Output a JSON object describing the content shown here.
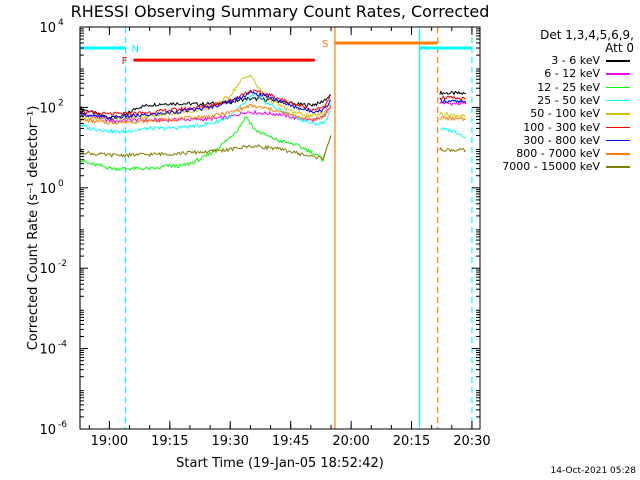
{
  "chart_data": {
    "type": "line",
    "title": "RHESSI Observing Summary Count Rates, Corrected",
    "xlabel": "Start Time (19-Jan-05 18:52:42)",
    "ylabel": "Corrected Count Rate (s⁻¹ detector⁻¹)",
    "y_scale": "log",
    "ylim": [
      1e-06,
      10000.0
    ],
    "y_ticks": [
      {
        "value": 1e-06,
        "base": "10",
        "exp": "-6"
      },
      {
        "value": 0.0001,
        "base": "10",
        "exp": "-4"
      },
      {
        "value": 0.01,
        "base": "10",
        "exp": "-2"
      },
      {
        "value": 1,
        "base": "10",
        "exp": "0"
      },
      {
        "value": 100,
        "base": "10",
        "exp": "2"
      },
      {
        "value": 10000,
        "base": "10",
        "exp": "4"
      }
    ],
    "xlim": [
      "18:52:42",
      "20:32:00"
    ],
    "x_ticks": [
      {
        "t": "19:00",
        "label": "19:00"
      },
      {
        "t": "19:15",
        "label": "19:15"
      },
      {
        "t": "19:30",
        "label": "19:30"
      },
      {
        "t": "19:45",
        "label": "19:45"
      },
      {
        "t": "20:00",
        "label": "20:00"
      },
      {
        "t": "20:15",
        "label": "20:15"
      },
      {
        "t": "20:30",
        "label": "20:30"
      }
    ],
    "legend_header": [
      "Det 1,3,4,5,6,9,",
      "Att 0"
    ],
    "legend_position": "right",
    "series": [
      {
        "name": "3 - 6 keV",
        "color": "#000000",
        "segments": [
          {
            "x": [
              "18:52:42",
              "18:55",
              "18:58",
              "19:01",
              "19:04",
              "19:07",
              "19:10",
              "19:14",
              "19:18",
              "19:22",
              "19:26",
              "19:30",
              "19:34",
              "19:38",
              "19:42",
              "19:46",
              "19:50",
              "19:52",
              "19:53:30",
              "19:55"
            ],
            "y": [
              95,
              80,
              62,
              55,
              65,
              100,
              115,
              125,
              125,
              120,
              125,
              135,
              165,
              160,
              145,
              120,
              115,
              125,
              155,
              200
            ]
          },
          {
            "x": [
              "20:22",
              "20:28:30"
            ],
            "y": [
              230,
              220
            ]
          }
        ]
      },
      {
        "name": "6 - 12 keV",
        "color": "#ff00ff",
        "segments": [
          {
            "x": [
              "18:52:42",
              "18:55",
              "18:58",
              "19:01",
              "19:04",
              "19:07",
              "19:10",
              "19:14",
              "19:18",
              "19:22",
              "19:26",
              "19:30",
              "19:34",
              "19:38",
              "19:42",
              "19:46",
              "19:50",
              "19:52",
              "19:53:30",
              "19:55"
            ],
            "y": [
              75,
              62,
              52,
              45,
              48,
              50,
              48,
              48,
              50,
              50,
              52,
              58,
              78,
              72,
              68,
              55,
              48,
              50,
              65,
              110
            ]
          },
          {
            "x": [
              "20:22",
              "20:28:30"
            ],
            "y": [
              130,
              120
            ]
          }
        ]
      },
      {
        "name": "12 - 25 keV",
        "color": "#00ff00",
        "segments": [
          {
            "x": [
              "18:52:42",
              "18:55",
              "18:58",
              "19:01",
              "19:04",
              "19:06",
              "19:08",
              "19:12",
              "19:14",
              "19:16",
              "19:18",
              "19:20",
              "19:24",
              "19:27",
              "19:30",
              "19:32",
              "19:34",
              "19:36",
              "19:39",
              "19:42",
              "19:46",
              "19:50",
              "19:53",
              "19:55"
            ],
            "y": [
              5,
              4,
              3.5,
              3,
              3,
              3,
              3,
              3,
              3.5,
              3.5,
              3.5,
              4,
              6,
              10,
              18,
              30,
              60,
              28,
              20,
              15,
              12,
              8,
              5,
              20
            ]
          }
        ]
      },
      {
        "name": "25 - 50 keV",
        "color": "#00ffff",
        "segments": [
          {
            "x": [
              "18:52:42",
              "18:55",
              "18:58",
              "19:01",
              "19:04",
              "19:07",
              "19:10",
              "19:14",
              "19:18",
              "19:22",
              "19:26",
              "19:30",
              "19:34",
              "19:36",
              "19:38",
              "19:42",
              "19:46",
              "19:50",
              "19:52",
              "19:53:30",
              "19:55"
            ],
            "y": [
              38,
              30,
              28,
              25,
              25,
              28,
              30,
              30,
              32,
              35,
              42,
              60,
              140,
              220,
              150,
              90,
              60,
              40,
              38,
              45,
              80
            ]
          },
          {
            "x": [
              "20:22",
              "20:26",
              "20:28:30"
            ],
            "y": [
              30,
              25,
              18
            ]
          }
        ]
      },
      {
        "name": "50 - 100 keV",
        "color": "#d4c400",
        "segments": [
          {
            "x": [
              "18:52:42",
              "18:56",
              "19:00",
              "19:05",
              "19:10",
              "19:15",
              "19:20",
              "19:25",
              "19:30",
              "19:33",
              "19:35",
              "19:37",
              "19:40",
              "19:45",
              "19:50",
              "19:53",
              "19:55"
            ],
            "y": [
              60,
              55,
              52,
              55,
              60,
              70,
              80,
              100,
              200,
              500,
              650,
              300,
              150,
              80,
              60,
              70,
              130
            ]
          },
          {
            "x": [
              "20:22",
              "20:28:30"
            ],
            "y": [
              70,
              60
            ]
          }
        ]
      },
      {
        "name": "100 - 300 keV",
        "color": "#ff0000",
        "segments": [
          {
            "x": [
              "18:52:42",
              "18:56",
              "19:00",
              "19:05",
              "19:10",
              "19:15",
              "19:20",
              "19:25",
              "19:30",
              "19:35",
              "19:40",
              "19:45",
              "19:50",
              "19:53",
              "19:55"
            ],
            "y": [
              80,
              72,
              68,
              70,
              75,
              85,
              95,
              110,
              150,
              260,
              200,
              130,
              90,
              95,
              200
            ]
          },
          {
            "x": [
              "20:22",
              "20:28:30"
            ],
            "y": [
              180,
              160
            ]
          }
        ]
      },
      {
        "name": "300 - 800 keV",
        "color": "#0000ff",
        "segments": [
          {
            "x": [
              "18:52:42",
              "18:56",
              "19:00",
              "19:05",
              "19:10",
              "19:15",
              "19:20",
              "19:25",
              "19:30",
              "19:35",
              "19:40",
              "19:45",
              "19:50",
              "19:53",
              "19:55"
            ],
            "y": [
              70,
              60,
              55,
              60,
              65,
              75,
              85,
              100,
              140,
              230,
              180,
              110,
              80,
              85,
              150
            ]
          },
          {
            "x": [
              "20:22",
              "20:28:30"
            ],
            "y": [
              150,
              130
            ]
          }
        ]
      },
      {
        "name": "800 - 7000 keV",
        "color": "#ff8000",
        "segments": [
          {
            "x": [
              "18:52:42",
              "18:56",
              "19:00",
              "19:05",
              "19:10",
              "19:15",
              "19:20",
              "19:25",
              "19:30",
              "19:35",
              "19:40",
              "19:45",
              "19:50",
              "19:53",
              "19:55"
            ],
            "y": [
              50,
              45,
              42,
              44,
              46,
              50,
              55,
              60,
              75,
              110,
              90,
              65,
              50,
              55,
              100
            ]
          },
          {
            "x": [
              "20:22",
              "20:28:30"
            ],
            "y": [
              55,
              50
            ]
          }
        ]
      },
      {
        "name": "7000 - 15000 keV",
        "color": "#808000",
        "segments": [
          {
            "x": [
              "18:52:42",
              "18:56",
              "19:00",
              "19:05",
              "19:10",
              "19:15",
              "19:20",
              "19:25",
              "19:30",
              "19:35",
              "19:40",
              "19:45",
              "19:50",
              "19:53",
              "19:55"
            ],
            "y": [
              8,
              7,
              6.5,
              6.5,
              6.8,
              7,
              7.5,
              8,
              9,
              11,
              10,
              8,
              6,
              5.5,
              20
            ]
          },
          {
            "x": [
              "20:22",
              "20:28:30"
            ],
            "y": [
              9,
              8.5
            ]
          }
        ]
      }
    ],
    "markers": {
      "vlines": [
        {
          "t": "18:52:42",
          "color": "#00ffff",
          "style": "solid"
        },
        {
          "t": "19:04:00",
          "color": "#00ffff",
          "style": "dashed"
        },
        {
          "t": "19:56:00",
          "color": "#ff8000",
          "style": "solid"
        },
        {
          "t": "20:17:00",
          "color": "#00ffff",
          "style": "solid"
        },
        {
          "t": "20:21:30",
          "color": "#ff8000",
          "style": "dashed"
        },
        {
          "t": "20:30:00",
          "color": "#00ffff",
          "style": "dashed"
        }
      ],
      "bars": [
        {
          "label": "N",
          "color": "#00ffff",
          "t_start": "18:52:42",
          "t_end": "19:04:00",
          "y": 3000
        },
        {
          "label": "F",
          "color": "#ff0000",
          "t_start": "19:06:00",
          "t_end": "19:51:00",
          "y": 1500
        },
        {
          "label": "S",
          "color": "#ff8000",
          "t_start": "19:56:00",
          "t_end": "20:21:30",
          "y": 4000
        },
        {
          "label": "",
          "color": "#00ffff",
          "t_start": "20:17:00",
          "t_end": "20:30:00",
          "y": 3000
        }
      ]
    }
  },
  "footer_date": "14-Oct-2021 05:28"
}
